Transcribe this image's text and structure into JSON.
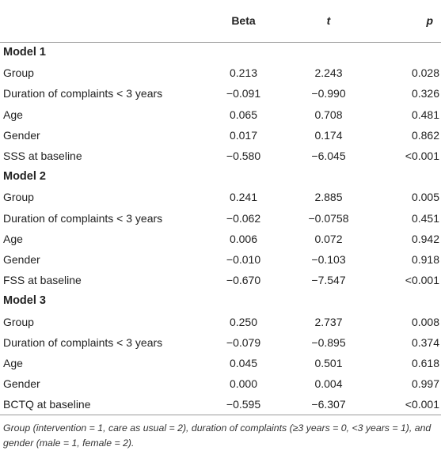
{
  "header": {
    "col0": "",
    "col1": "Beta",
    "col2": "t",
    "col3": "p"
  },
  "models": [
    {
      "title": "Model 1",
      "rows": [
        {
          "label": "Group",
          "beta": "0.213",
          "t": "2.243",
          "p": "0.028"
        },
        {
          "label": "Duration of complaints < 3 years",
          "beta": "−0.091",
          "t": "−0.990",
          "p": "0.326"
        },
        {
          "label": "Age",
          "beta": "0.065",
          "t": "0.708",
          "p": "0.481"
        },
        {
          "label": "Gender",
          "beta": "0.017",
          "t": "0.174",
          "p": "0.862"
        },
        {
          "label": "SSS at baseline",
          "beta": "−0.580",
          "t": "−6.045",
          "p": "<0.001"
        }
      ]
    },
    {
      "title": "Model 2",
      "rows": [
        {
          "label": "Group",
          "beta": "0.241",
          "t": "2.885",
          "p": "0.005"
        },
        {
          "label": "Duration of complaints < 3 years",
          "beta": "−0.062",
          "t": "−0.0758",
          "p": "0.451"
        },
        {
          "label": "Age",
          "beta": "0.006",
          "t": "0.072",
          "p": "0.942"
        },
        {
          "label": "Gender",
          "beta": "−0.010",
          "t": "−0.103",
          "p": "0.918"
        },
        {
          "label": "FSS at baseline",
          "beta": "−0.670",
          "t": "−7.547",
          "p": "<0.001"
        }
      ]
    },
    {
      "title": "Model 3",
      "rows": [
        {
          "label": "Group",
          "beta": "0.250",
          "t": "2.737",
          "p": "0.008"
        },
        {
          "label": "Duration of complaints < 3 years",
          "beta": "−0.079",
          "t": "−0.895",
          "p": "0.374"
        },
        {
          "label": "Age",
          "beta": "0.045",
          "t": "0.501",
          "p": "0.618"
        },
        {
          "label": "Gender",
          "beta": "0.000",
          "t": "0.004",
          "p": "0.997"
        },
        {
          "label": "BCTQ at baseline",
          "beta": "−0.595",
          "t": "−6.307",
          "p": "<0.001"
        }
      ]
    }
  ],
  "footnote": "Group (intervention = 1, care as usual = 2), duration of complaints (≥3 years = 0, <3 years = 1), and gender (male = 1, female = 2)."
}
